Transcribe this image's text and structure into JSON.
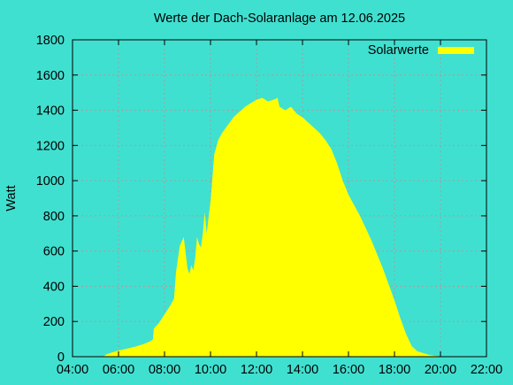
{
  "chart_data": {
    "type": "area",
    "title": "Werte der Dach-Solaranlage am 12.06.2025",
    "xlabel": "",
    "ylabel": "Watt",
    "xlim": [
      "04:00",
      "22:00"
    ],
    "ylim": [
      0,
      1800
    ],
    "x_ticks": [
      "04:00",
      "06:00",
      "08:00",
      "10:00",
      "12:00",
      "14:00",
      "16:00",
      "18:00",
      "20:00",
      "22:00"
    ],
    "y_ticks": [
      0,
      200,
      400,
      600,
      800,
      1000,
      1200,
      1400,
      1600,
      1800
    ],
    "grid": true,
    "legend_position": "top-right",
    "colors": {
      "background": "#40e0d0",
      "series": "#ffff00",
      "grid": "#a0a0a0",
      "axis": "#000000"
    },
    "series": [
      {
        "name": "Solarwerte",
        "x": [
          "05:23",
          "05:30",
          "05:45",
          "06:00",
          "06:15",
          "06:30",
          "06:45",
          "07:00",
          "07:15",
          "07:25",
          "07:30",
          "07:32",
          "07:45",
          "08:00",
          "08:15",
          "08:25",
          "08:30",
          "08:40",
          "08:50",
          "09:00",
          "09:05",
          "09:10",
          "09:15",
          "09:20",
          "09:25",
          "09:30",
          "09:35",
          "09:40",
          "09:45",
          "09:50",
          "09:55",
          "10:00",
          "10:10",
          "10:20",
          "10:30",
          "10:40",
          "10:50",
          "11:00",
          "11:10",
          "11:20",
          "11:30",
          "11:45",
          "12:00",
          "12:15",
          "12:30",
          "12:45",
          "12:55",
          "13:00",
          "13:15",
          "13:30",
          "13:45",
          "14:00",
          "14:10",
          "14:20",
          "14:30",
          "14:45",
          "15:00",
          "15:15",
          "15:30",
          "15:45",
          "16:00",
          "16:15",
          "16:30",
          "16:45",
          "17:00",
          "17:15",
          "17:30",
          "17:45",
          "18:00",
          "18:15",
          "18:30",
          "18:45",
          "19:00",
          "19:15",
          "19:30",
          "19:45",
          "20:00",
          "20:15",
          "20:30",
          "20:45",
          "21:00",
          "21:06"
        ],
        "values": [
          5,
          15,
          25,
          35,
          42,
          50,
          58,
          68,
          80,
          90,
          100,
          160,
          190,
          240,
          290,
          330,
          480,
          630,
          680,
          500,
          470,
          520,
          490,
          560,
          680,
          640,
          620,
          700,
          820,
          700,
          790,
          880,
          1150,
          1230,
          1270,
          1300,
          1330,
          1360,
          1380,
          1400,
          1420,
          1440,
          1460,
          1470,
          1450,
          1460,
          1470,
          1420,
          1400,
          1420,
          1380,
          1360,
          1340,
          1320,
          1300,
          1270,
          1230,
          1180,
          1100,
          1000,
          920,
          860,
          800,
          730,
          660,
          580,
          500,
          410,
          320,
          220,
          130,
          60,
          30,
          20,
          10,
          5,
          2,
          0,
          0,
          0,
          0,
          0
        ]
      }
    ]
  }
}
